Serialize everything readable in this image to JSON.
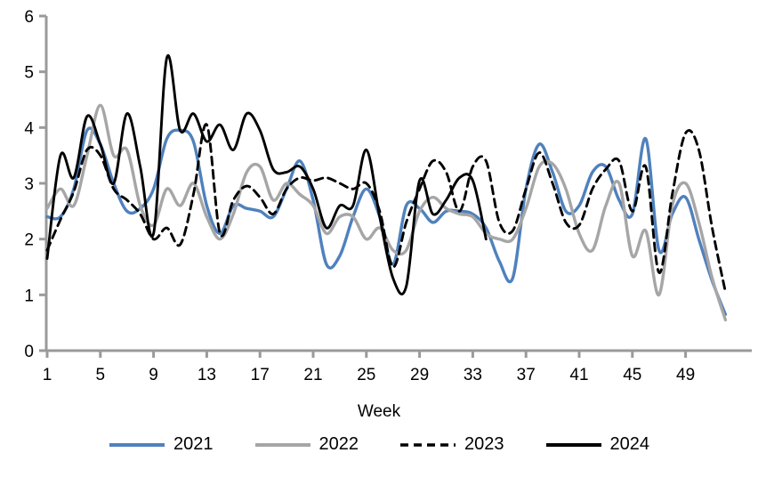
{
  "x_axis_title": "Week",
  "chart_data": {
    "type": "line",
    "title": "",
    "xlabel": "Week",
    "ylabel": "",
    "grid": false,
    "legend_position": "bottom",
    "axis_color": "#9a9a9a",
    "text_color": "#000000",
    "background": "#ffffff",
    "ylim": [
      0,
      6
    ],
    "xlim": [
      1,
      54
    ],
    "y_ticks": [
      0,
      1,
      2,
      3,
      4,
      5,
      6
    ],
    "x_ticks": [
      1,
      5,
      9,
      13,
      17,
      21,
      25,
      29,
      33,
      37,
      41,
      45,
      49
    ],
    "x_start_week": 1,
    "series": [
      {
        "name": "2021",
        "color": "#4f81bd",
        "style": "solid",
        "width": 3.4,
        "values": [
          2.4,
          2.4,
          2.9,
          3.95,
          3.7,
          3.0,
          2.5,
          2.55,
          2.9,
          3.8,
          3.95,
          3.75,
          2.6,
          2.1,
          2.6,
          2.55,
          2.5,
          2.4,
          2.9,
          3.4,
          2.7,
          1.55,
          1.7,
          2.4,
          2.9,
          2.4,
          1.55,
          2.6,
          2.55,
          2.3,
          2.5,
          2.5,
          2.45,
          2.2,
          1.6,
          1.3,
          2.9,
          3.7,
          3.2,
          2.5,
          2.6,
          3.2,
          3.3,
          2.7,
          2.45,
          3.8,
          1.8,
          2.45,
          2.75,
          2.0,
          1.25,
          0.65
        ]
      },
      {
        "name": "2022",
        "color": "#a6a6a6",
        "style": "solid",
        "width": 3.4,
        "values": [
          2.55,
          2.9,
          2.6,
          3.5,
          4.4,
          3.5,
          3.6,
          2.6,
          2.25,
          2.9,
          2.6,
          3.0,
          2.4,
          2.0,
          2.45,
          3.2,
          3.3,
          2.7,
          3.0,
          2.8,
          2.6,
          2.1,
          2.4,
          2.4,
          2.0,
          2.2,
          1.8,
          1.8,
          2.5,
          2.75,
          2.55,
          2.45,
          2.4,
          2.1,
          2.0,
          2.0,
          2.55,
          3.3,
          3.35,
          2.9,
          2.1,
          1.8,
          2.6,
          3.0,
          1.7,
          2.15,
          1.0,
          2.6,
          3.0,
          2.3,
          1.3,
          0.55
        ]
      },
      {
        "name": "2023",
        "color": "#000000",
        "style": "dashed",
        "width": 2.9,
        "values": [
          1.8,
          2.35,
          2.85,
          3.6,
          3.5,
          2.9,
          2.7,
          2.45,
          2.0,
          2.2,
          1.9,
          2.8,
          4.05,
          2.1,
          2.7,
          2.95,
          2.75,
          2.45,
          2.9,
          3.1,
          3.05,
          3.1,
          3.0,
          2.9,
          3.0,
          2.5,
          1.5,
          2.3,
          2.9,
          3.4,
          3.2,
          2.5,
          3.3,
          3.4,
          2.3,
          2.15,
          2.9,
          3.55,
          3.0,
          2.3,
          2.25,
          2.9,
          3.25,
          3.4,
          2.5,
          3.3,
          1.4,
          2.8,
          3.9,
          3.6,
          2.2,
          1.05
        ]
      },
      {
        "name": "2024",
        "color": "#000000",
        "style": "solid",
        "width": 2.9,
        "values": [
          1.65,
          3.5,
          3.1,
          4.2,
          3.7,
          3.0,
          4.25,
          3.3,
          2.1,
          5.25,
          3.95,
          4.25,
          3.75,
          4.05,
          3.6,
          4.25,
          3.95,
          3.25,
          3.2,
          3.3,
          2.9,
          2.2,
          2.6,
          2.6,
          3.6,
          2.4,
          1.3,
          1.15,
          3.05,
          2.45,
          2.7,
          3.1,
          3.05,
          2.0
        ]
      }
    ]
  }
}
